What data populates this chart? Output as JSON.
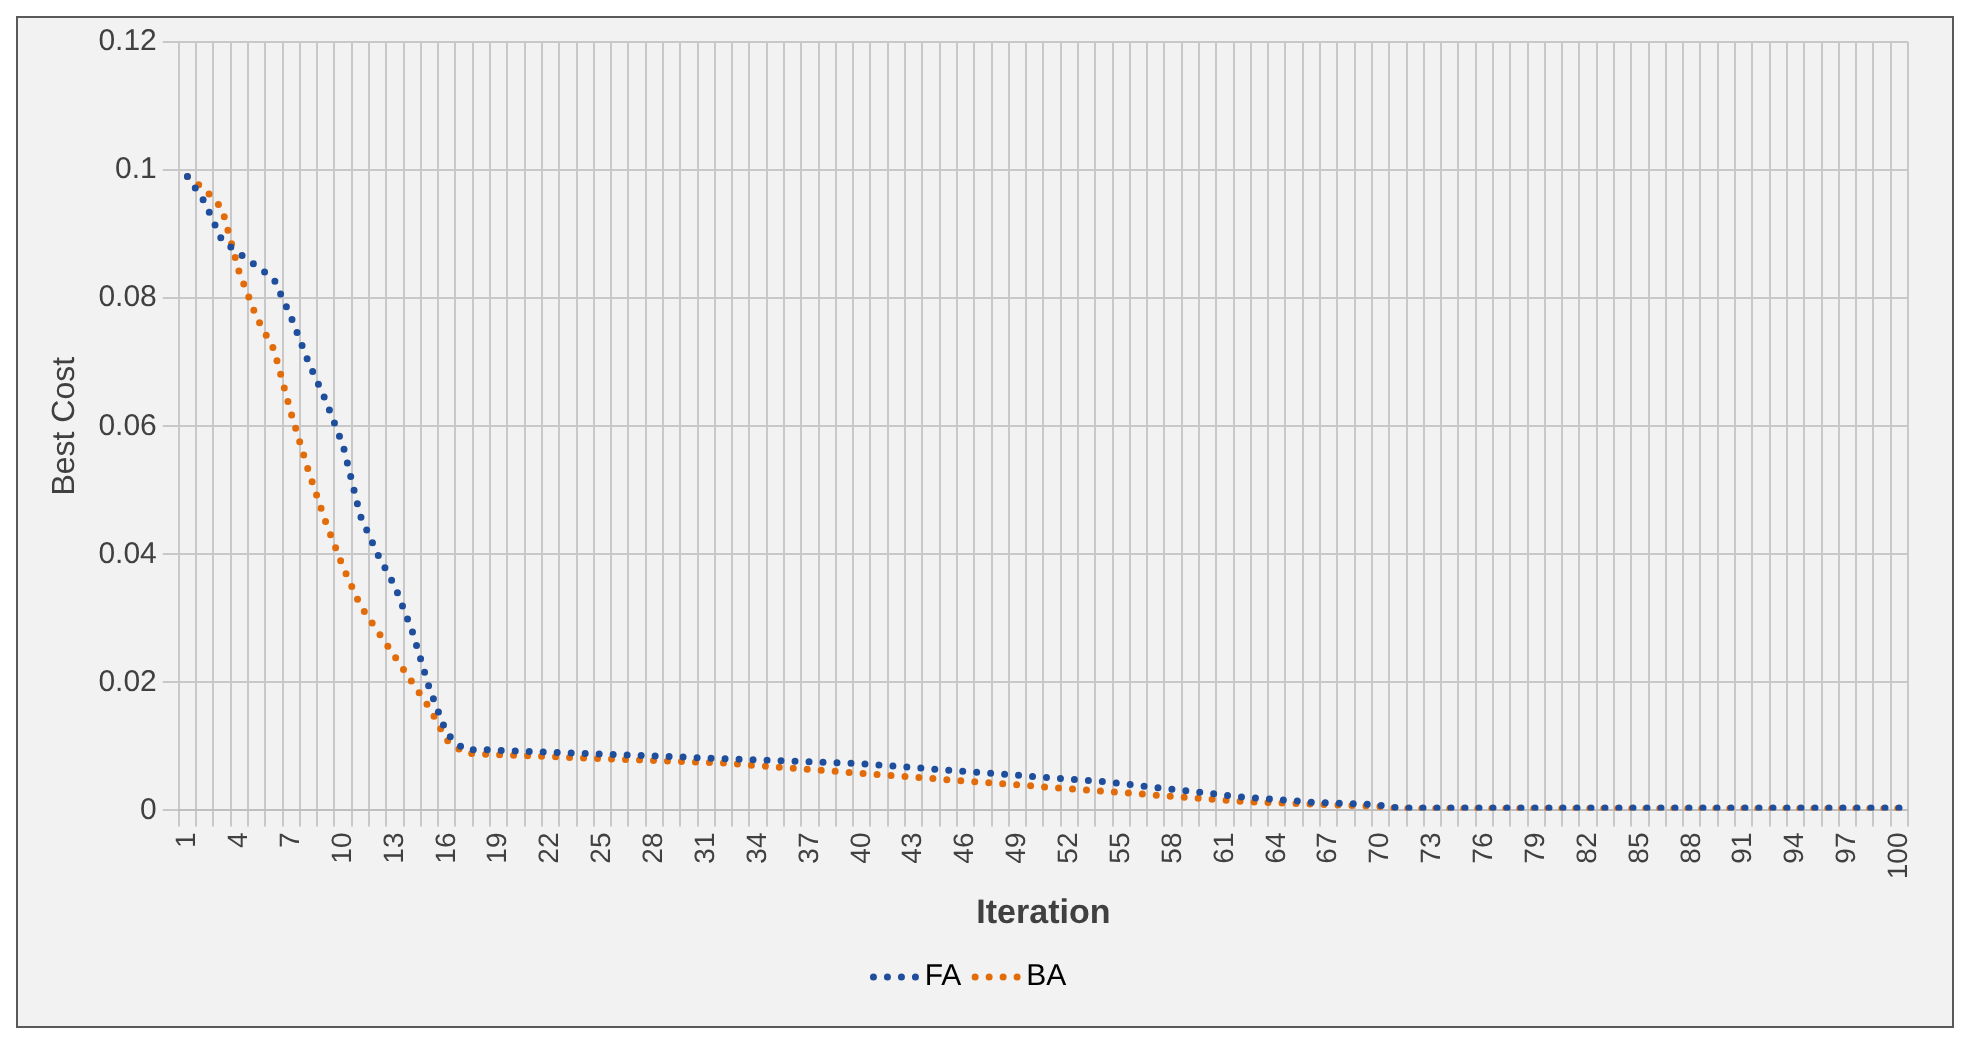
{
  "chart_data": {
    "type": "line",
    "xlabel": "Iteration",
    "ylabel": "Best Cost",
    "categories": [
      "1",
      null,
      null,
      "4",
      null,
      null,
      "7",
      null,
      null,
      "10",
      null,
      null,
      "13",
      null,
      null,
      "16",
      null,
      null,
      "19",
      null,
      null,
      "22",
      null,
      null,
      "25",
      null,
      null,
      "28",
      null,
      null,
      "31",
      null,
      null,
      "34",
      null,
      null,
      "37",
      null,
      null,
      "40",
      null,
      null,
      "43",
      null,
      null,
      "46",
      null,
      null,
      "49",
      null,
      null,
      "52",
      null,
      null,
      "55",
      null,
      null,
      "58",
      null,
      null,
      "61",
      null,
      null,
      "64",
      null,
      null,
      "67",
      null,
      null,
      "70",
      null,
      null,
      "73",
      null,
      null,
      "76",
      null,
      null,
      "79",
      null,
      null,
      "82",
      null,
      null,
      "85",
      null,
      null,
      "88",
      null,
      null,
      "91",
      null,
      null,
      "94",
      null,
      null,
      "97",
      null,
      null,
      "100"
    ],
    "series": [
      {
        "name": "FA",
        "color": "#1f4e9c",
        "values": [
          0.099,
          0.095,
          0.089,
          0.087,
          0.085,
          0.083,
          0.077,
          0.07,
          0.064,
          0.057,
          0.046,
          0.04,
          0.035,
          0.028,
          0.019,
          0.012,
          0.0095,
          0.0095,
          0.0094,
          0.0093,
          0.0092,
          0.0091,
          0.009,
          0.0089,
          0.0088,
          0.0087,
          0.0086,
          0.0085,
          0.0084,
          0.0083,
          0.0082,
          0.0081,
          0.008,
          0.0079,
          0.0078,
          0.0077,
          0.0076,
          0.0075,
          0.0074,
          0.0073,
          0.0071,
          0.0069,
          0.0067,
          0.0065,
          0.0063,
          0.0061,
          0.0059,
          0.0057,
          0.0055,
          0.0053,
          0.0051,
          0.0049,
          0.0047,
          0.0045,
          0.0042,
          0.0039,
          0.0036,
          0.0033,
          0.003,
          0.0027,
          0.0024,
          0.0021,
          0.0019,
          0.0017,
          0.0015,
          0.0013,
          0.0012,
          0.0011,
          0.001,
          0.0008,
          0.0004,
          0.0004,
          0.0004,
          0.0004,
          0.0004,
          0.0004,
          0.0004,
          0.0004,
          0.0004,
          0.0004,
          0.0004,
          0.0004,
          0.0004,
          0.0004,
          0.0004,
          0.0004,
          0.0004,
          0.0004,
          0.0004,
          0.0004,
          0.0004,
          0.0004,
          0.0004,
          0.0004,
          0.0004,
          0.0004,
          0.0004,
          0.0004,
          0.0004,
          0.0004
        ]
      },
      {
        "name": "BA",
        "color": "#e36c0a",
        "values": [
          0.099,
          0.097,
          0.094,
          0.084,
          0.077,
          0.072,
          0.062,
          0.053,
          0.045,
          0.038,
          0.032,
          0.028,
          0.024,
          0.02,
          0.016,
          0.011,
          0.009,
          0.0088,
          0.0087,
          0.0086,
          0.0085,
          0.0084,
          0.0083,
          0.0082,
          0.0081,
          0.008,
          0.0079,
          0.0078,
          0.0077,
          0.0076,
          0.0075,
          0.0074,
          0.0072,
          0.007,
          0.0068,
          0.0066,
          0.0064,
          0.0062,
          0.006,
          0.0058,
          0.0056,
          0.0054,
          0.0052,
          0.005,
          0.0048,
          0.0046,
          0.0044,
          0.0042,
          0.004,
          0.0038,
          0.0036,
          0.0034,
          0.0032,
          0.003,
          0.0028,
          0.0026,
          0.0024,
          0.0022,
          0.002,
          0.0018,
          0.0016,
          0.0014,
          0.0013,
          0.0012,
          0.0011,
          0.001,
          0.0009,
          0.0008,
          0.0007,
          0.0006,
          0.0003,
          0.0003,
          0.0003,
          0.0003,
          0.0003,
          0.0003,
          0.0003,
          0.0003,
          0.0003,
          0.0003,
          0.0003,
          0.0003,
          0.0003,
          0.0003,
          0.0003,
          0.0003,
          0.0003,
          0.0003,
          0.0003,
          0.0003,
          0.0003,
          0.0003,
          0.0003,
          0.0003,
          0.0003,
          0.0003,
          0.0003,
          0.0003,
          0.0003,
          0.0003
        ]
      }
    ],
    "ylim": [
      0,
      0.12
    ],
    "yticks": [
      0,
      0.02,
      0.04,
      0.06,
      0.08,
      0.1,
      0.12
    ],
    "grid": true,
    "legend": "bottom",
    "marker": "none",
    "line_style": "dotted"
  }
}
